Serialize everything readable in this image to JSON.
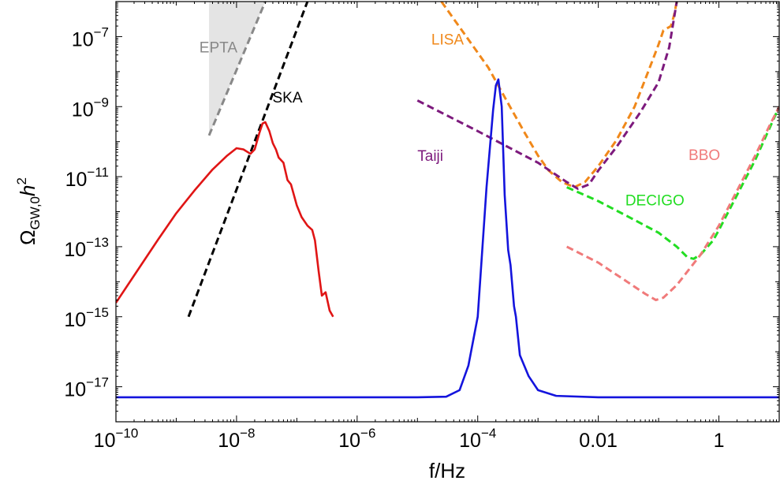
{
  "chart_data": {
    "type": "line",
    "xscale": "log",
    "yscale": "log",
    "xlim": [
      1e-10,
      10
    ],
    "ylim": [
      1e-18,
      1e-06
    ],
    "xlabel": "f/Hz",
    "ylabel": {
      "base": "Ω",
      "sub": "GW,0",
      "mid": "h",
      "sup": "2"
    },
    "x_ticks": [
      {
        "value": 1e-10,
        "base": "10",
        "exp": "−10"
      },
      {
        "value": 1e-08,
        "base": "10",
        "exp": "−8"
      },
      {
        "value": 1e-06,
        "base": "10",
        "exp": "−6"
      },
      {
        "value": 0.0001,
        "base": "10",
        "exp": "−4"
      },
      {
        "value": 0.01,
        "base": "0.01",
        "exp": ""
      },
      {
        "value": 1,
        "base": "1",
        "exp": ""
      }
    ],
    "y_ticks": [
      {
        "value": 1e-07,
        "base": "10",
        "exp": "−7"
      },
      {
        "value": 1e-09,
        "base": "10",
        "exp": "−9"
      },
      {
        "value": 1e-11,
        "base": "10",
        "exp": "−11"
      },
      {
        "value": 1e-13,
        "base": "10",
        "exp": "−13"
      },
      {
        "value": 1e-15,
        "base": "10",
        "exp": "−15"
      },
      {
        "value": 1e-17,
        "base": "10",
        "exp": "−17"
      }
    ],
    "grid": false,
    "legend": "none",
    "series": [
      {
        "name": "EPTA",
        "color": "#888888",
        "dash": true,
        "fill": "#e4e4e4",
        "points": [
          [
            3.5e-09,
            1.5e-10
          ],
          [
            3e-08,
            1e-06
          ]
        ],
        "label_at": [
          5e-09,
          3.5e-08
        ],
        "label_anchor": "middle"
      },
      {
        "name": "SKA",
        "color": "#000000",
        "dash": true,
        "points": [
          [
            1.6e-09,
            1e-15
          ],
          [
            1.5e-07,
            1e-06
          ]
        ],
        "label_at": [
          7e-08,
          1.3e-09
        ],
        "label_anchor": "middle"
      },
      {
        "name": "LISA",
        "color": "#f0881a",
        "dash": true,
        "points": [
          [
            2.5e-05,
            1e-06
          ],
          [
            6e-05,
            1.2e-07
          ],
          [
            0.00015,
            1.3e-08
          ],
          [
            0.0003,
            1.5e-09
          ],
          [
            0.0006,
            1.8e-10
          ],
          [
            0.001,
            4e-11
          ],
          [
            0.0015,
            1.5e-11
          ],
          [
            0.0025,
            7e-12
          ],
          [
            0.004,
            5e-12
          ],
          [
            0.006,
            7e-12
          ],
          [
            0.01,
            2e-11
          ],
          [
            0.02,
            1.1e-10
          ],
          [
            0.04,
            1e-09
          ],
          [
            0.07,
            1.2e-08
          ],
          [
            0.1,
            6e-08
          ],
          [
            0.12,
            1.5e-07
          ],
          [
            0.16,
            2e-07
          ],
          [
            0.18,
            4e-07
          ],
          [
            0.2,
            1e-06
          ]
        ],
        "label_at": [
          1.7e-05,
          6e-08
        ],
        "label_anchor": "start"
      },
      {
        "name": "Taiji",
        "color": "#7d1a7d",
        "dash": true,
        "points": [
          [
            1e-05,
            1.5e-09
          ],
          [
            0.0001,
            2e-10
          ],
          [
            0.001,
            2.5e-11
          ],
          [
            0.003,
            7e-12
          ],
          [
            0.0046,
            4.5e-12
          ],
          [
            0.007,
            6e-12
          ],
          [
            0.01,
            1.5e-11
          ],
          [
            0.02,
            7e-11
          ],
          [
            0.05,
            7e-10
          ],
          [
            0.1,
            5e-09
          ],
          [
            0.15,
            5e-08
          ],
          [
            0.2,
            1e-06
          ]
        ],
        "label_at": [
          1e-05,
          2.8e-11
        ],
        "label_anchor": "start"
      },
      {
        "name": "DECIGO",
        "color": "#22dd22",
        "dash": true,
        "points": [
          [
            0.003,
            5e-12
          ],
          [
            0.01,
            2e-12
          ],
          [
            0.03,
            7.5e-13
          ],
          [
            0.1,
            2.5e-13
          ],
          [
            0.2,
            1e-13
          ],
          [
            0.3,
            5e-14
          ],
          [
            0.38,
            4.5e-14
          ],
          [
            0.5,
            6e-14
          ],
          [
            0.8,
            1.5e-13
          ],
          [
            1,
            3e-13
          ],
          [
            2,
            3e-12
          ],
          [
            4,
            3e-11
          ],
          [
            10,
            1e-09
          ]
        ],
        "label_at": [
          0.028,
          1.5e-12
        ],
        "label_anchor": "start"
      },
      {
        "name": "BBO",
        "color": "#f07a7a",
        "dash": true,
        "points": [
          [
            0.003,
            1e-13
          ],
          [
            0.01,
            3.5e-14
          ],
          [
            0.03,
            1e-14
          ],
          [
            0.06,
            4.5e-15
          ],
          [
            0.09,
            3e-15
          ],
          [
            0.12,
            3.5e-15
          ],
          [
            0.2,
            8e-15
          ],
          [
            0.5,
            6e-14
          ],
          [
            1,
            4e-13
          ],
          [
            2,
            4e-12
          ],
          [
            4,
            4e-11
          ],
          [
            7,
            3e-10
          ],
          [
            10,
            1e-09
          ]
        ],
        "label_at": [
          1.05,
          3e-11
        ],
        "label_anchor": "end"
      },
      {
        "name": "",
        "color": "#e01515",
        "dash": false,
        "points": [
          [
            1e-10,
            2.5e-15
          ],
          [
            2e-10,
            1.5e-14
          ],
          [
            5e-10,
            1.6e-13
          ],
          [
            1e-09,
            9e-13
          ],
          [
            2e-09,
            4e-12
          ],
          [
            4e-09,
            1.6e-11
          ],
          [
            7e-09,
            4e-11
          ],
          [
            1e-08,
            6.5e-11
          ],
          [
            1.3e-08,
            6e-11
          ],
          [
            1.7e-08,
            4.5e-11
          ],
          [
            2e-08,
            6e-11
          ],
          [
            2.4e-08,
            1.8e-10
          ],
          [
            2.7e-08,
            3.3e-10
          ],
          [
            3e-08,
            3.6e-10
          ],
          [
            3.5e-08,
            2e-10
          ],
          [
            4e-08,
            9e-11
          ],
          [
            4.5e-08,
            6e-11
          ],
          [
            5e-08,
            3.5e-11
          ],
          [
            6e-08,
            2.5e-11
          ],
          [
            7e-08,
            8e-12
          ],
          [
            8e-08,
            6e-12
          ],
          [
            1e-07,
            1.5e-12
          ],
          [
            1.2e-07,
            7e-13
          ],
          [
            1.5e-07,
            4e-13
          ],
          [
            1.8e-07,
            3e-13
          ],
          [
            2e-07,
            1.5e-13
          ],
          [
            2.3e-07,
            2e-14
          ],
          [
            2.6e-07,
            4e-15
          ],
          [
            3e-07,
            5e-15
          ],
          [
            3.5e-07,
            1.5e-15
          ],
          [
            4e-07,
            1e-15
          ]
        ]
      },
      {
        "name": "",
        "color": "#1414dd",
        "dash": false,
        "points": [
          [
            1e-10,
            5e-18
          ],
          [
            1e-07,
            5e-18
          ],
          [
            1e-05,
            5e-18
          ],
          [
            3e-05,
            5.2e-18
          ],
          [
            5e-05,
            8e-18
          ],
          [
            7e-05,
            4e-17
          ],
          [
            0.0001,
            1e-15
          ],
          [
            0.00014,
            5e-12
          ],
          [
            0.00018,
            8e-10
          ],
          [
            0.0002,
            4e-09
          ],
          [
            0.00022,
            6e-09
          ],
          [
            0.00025,
            1e-09
          ],
          [
            0.00028,
            3e-12
          ],
          [
            0.00032,
            8e-14
          ],
          [
            0.00035,
            3e-14
          ],
          [
            0.0004,
            2e-15
          ],
          [
            0.00043,
            1e-15
          ],
          [
            0.0005,
            8e-17
          ],
          [
            0.0007,
            2e-17
          ],
          [
            0.001,
            8e-18
          ],
          [
            0.002,
            5.5e-18
          ],
          [
            0.01,
            5e-18
          ],
          [
            1,
            5e-18
          ],
          [
            10,
            5e-18
          ]
        ]
      }
    ]
  }
}
